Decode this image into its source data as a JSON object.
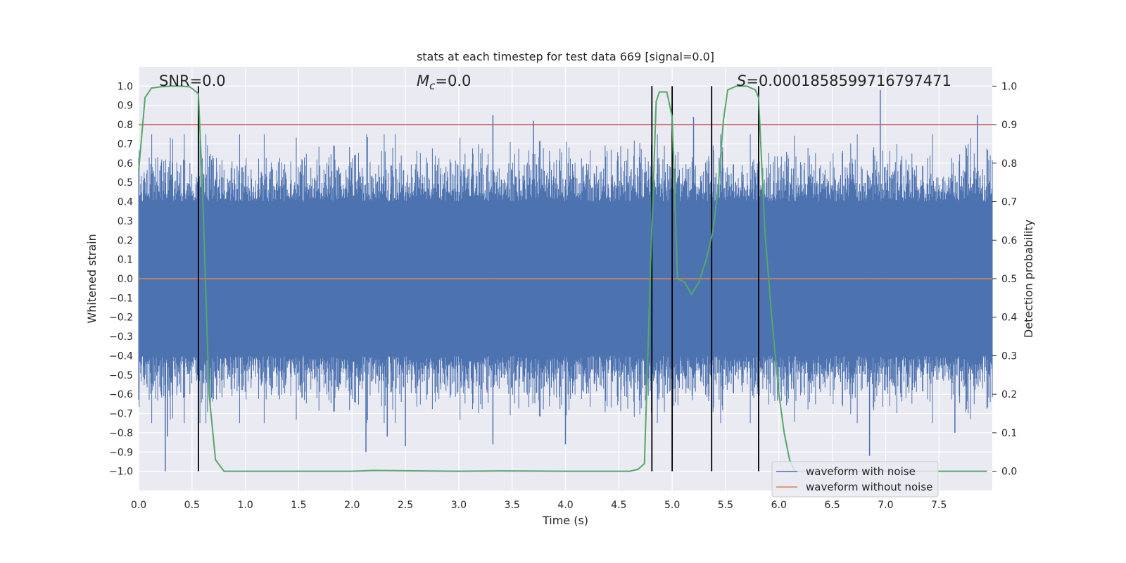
{
  "chart_data": {
    "type": "line",
    "title": "stats at each timestep for test data 669 [signal=0.0]",
    "xlabel": "Time (s)",
    "ylabel": "Whitened strain",
    "ylabel_right": "Detection probability",
    "xlim": [
      0.0,
      8.0
    ],
    "ylim": [
      -1.1,
      1.1
    ],
    "ylim_right": [
      -0.05,
      1.05
    ],
    "x_ticks": [
      0.0,
      0.5,
      1.0,
      1.5,
      2.0,
      2.5,
      3.0,
      3.5,
      4.0,
      4.5,
      5.0,
      5.5,
      6.0,
      6.5,
      7.0,
      7.5
    ],
    "x_tick_labels": [
      "0.0",
      "0.5",
      "1.0",
      "1.5",
      "2.0",
      "2.5",
      "3.0",
      "3.5",
      "4.0",
      "4.5",
      "5.0",
      "5.5",
      "6.0",
      "6.5",
      "7.0",
      "7.5"
    ],
    "y_ticks": [
      1.0,
      0.9,
      0.8,
      0.7,
      0.6,
      0.5,
      0.4,
      0.3,
      0.2,
      0.1,
      0.0,
      -0.1,
      -0.2,
      -0.3,
      -0.4,
      -0.5,
      -0.6,
      -0.7,
      -0.8,
      -0.9,
      -1.0
    ],
    "y_tick_labels": [
      "1.0",
      "0.9",
      "0.8",
      "0.7",
      "0.6",
      "0.5",
      "0.4",
      "0.3",
      "0.2",
      "0.1",
      "0.0",
      "−0.1",
      "−0.2",
      "−0.3",
      "−0.4",
      "−0.5",
      "−0.6",
      "−0.7",
      "−0.8",
      "−0.9",
      "−1.0"
    ],
    "y_right_ticks": [
      1.0,
      0.9,
      0.8,
      0.7,
      0.6,
      0.5,
      0.4,
      0.3,
      0.2,
      0.1,
      0.0
    ],
    "y_right_tick_labels": [
      "1.0",
      "0.9",
      "0.8",
      "0.7",
      "0.6",
      "0.5",
      "0.4",
      "0.3",
      "0.2",
      "0.1",
      "0.0"
    ],
    "annotations": {
      "snr": "SNR=0.0",
      "mc_symbol": "M",
      "mc_sub": "c",
      "mc_value": "=0.0",
      "s_symbol": "S",
      "s_value": "=0.0001858599716797471"
    },
    "threshold_right": 0.9,
    "vertical_lines": [
      0.56,
      4.81,
      5.0,
      5.37,
      5.81
    ],
    "series": [
      {
        "name": "waveform with noise",
        "color": "#4c72b0",
        "kind": "noise",
        "x_range": [
          0.0,
          8.0
        ],
        "core_band": [
          -0.4,
          0.4
        ],
        "typical_peak_range": [
          -0.75,
          0.75
        ],
        "spikes": [
          {
            "x": 0.25,
            "y": -1.0
          },
          {
            "x": 0.27,
            "y": -0.82
          },
          {
            "x": 2.13,
            "y": -0.9
          },
          {
            "x": 2.33,
            "y": -0.82
          },
          {
            "x": 2.5,
            "y": -0.87
          },
          {
            "x": 3.32,
            "y": 0.85
          },
          {
            "x": 3.32,
            "y": -0.86
          },
          {
            "x": 3.7,
            "y": 0.82
          },
          {
            "x": 4.0,
            "y": -0.86
          },
          {
            "x": 5.2,
            "y": 0.84
          },
          {
            "x": 6.95,
            "y": 0.98
          },
          {
            "x": 6.85,
            "y": -0.92
          },
          {
            "x": 7.86,
            "y": 0.85
          },
          {
            "x": 7.65,
            "y": -0.8
          }
        ]
      },
      {
        "name": "waveform without noise",
        "color": "#dd8452",
        "kind": "flat",
        "y": 0.0
      },
      {
        "name": "detection probability",
        "color": "#55a868",
        "axis": "right",
        "x": [
          0.0,
          0.06,
          0.12,
          0.2,
          0.3,
          0.4,
          0.48,
          0.54,
          0.56,
          0.6,
          0.66,
          0.72,
          0.8,
          0.85,
          1.0,
          2.0,
          2.2,
          3.0,
          3.4,
          4.0,
          4.6,
          4.68,
          4.74,
          4.8,
          4.85,
          4.88,
          4.95,
          5.0,
          5.05,
          5.12,
          5.18,
          5.25,
          5.32,
          5.38,
          5.43,
          5.48,
          5.52,
          5.6,
          5.7,
          5.78,
          5.81,
          5.87,
          5.93,
          6.0,
          6.05,
          6.1,
          6.15,
          6.2,
          6.5,
          7.0,
          7.5,
          7.95
        ],
        "y": [
          0.78,
          0.97,
          0.995,
          0.998,
          1.0,
          1.0,
          0.998,
          0.985,
          0.98,
          0.72,
          0.2,
          0.03,
          0.0,
          0.0,
          0.0,
          0.0,
          0.002,
          0.0,
          0.001,
          0.0,
          0.0,
          0.005,
          0.02,
          0.55,
          0.96,
          0.985,
          0.985,
          0.92,
          0.5,
          0.49,
          0.46,
          0.49,
          0.55,
          0.62,
          0.73,
          0.91,
          0.99,
          1.0,
          1.0,
          0.99,
          0.97,
          0.62,
          0.41,
          0.2,
          0.1,
          0.03,
          0.0,
          0.0,
          0.0,
          0.0,
          0.0,
          0.0
        ]
      },
      {
        "name": "threshold",
        "color": "#c44e52",
        "axis": "right",
        "y": 0.9
      }
    ],
    "legend": {
      "location": "bottom-right",
      "entries": [
        {
          "label": "waveform with noise",
          "color": "#4c72b0"
        },
        {
          "label": "waveform without noise",
          "color": "#dd8452"
        }
      ]
    },
    "grid": true,
    "style": "seaborn-darkgrid"
  }
}
